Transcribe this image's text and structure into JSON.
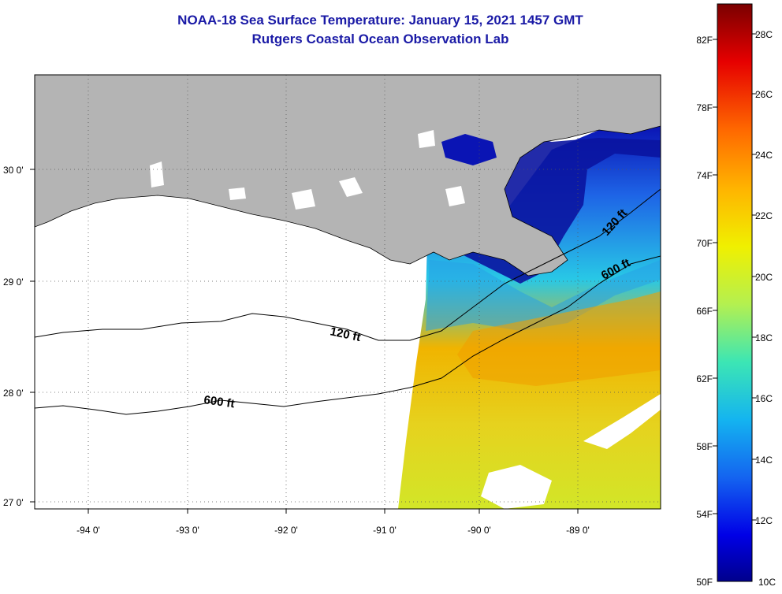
{
  "title": "NOAA-18 Sea Surface Temperature:  January 15, 2021 1457 GMT",
  "subtitle": "Rutgers Coastal Ocean Observation Lab",
  "lon_labels": [
    "-94 0'",
    "-93 0'",
    "-92 0'",
    "-91 0'",
    "-90 0'",
    "-89 0'"
  ],
  "lat_labels": [
    "30 0'",
    "29 0'",
    "28 0'",
    "27 0'"
  ],
  "contours": [
    {
      "label": "120 ft"
    },
    {
      "label": "600 ft"
    },
    {
      "label": "120 ft"
    },
    {
      "label": "600 ft"
    }
  ],
  "colorbar": {
    "f_labels": [
      "82F",
      "78F",
      "74F",
      "70F",
      "66F",
      "62F",
      "58F",
      "54F",
      "50F"
    ],
    "c_labels": [
      "28C",
      "26C",
      "24C",
      "22C",
      "20C",
      "18C",
      "16C",
      "14C",
      "12C",
      "10C"
    ]
  },
  "colors": {
    "title": "#1a1aa6",
    "land": "#b4b4b4",
    "cold": "#0a14b4",
    "mid": "#28b4e6",
    "warm": "#f0b400"
  }
}
